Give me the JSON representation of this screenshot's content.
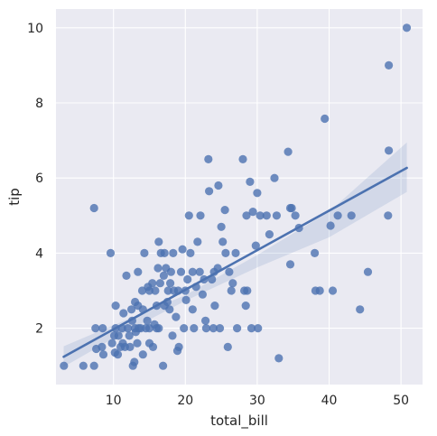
{
  "chart_data": {
    "type": "scatter",
    "title": "",
    "xlabel": "total_bill",
    "ylabel": "tip",
    "xlim": [
      2,
      53
    ],
    "ylim": [
      0.5,
      10.5
    ],
    "xticks": [
      10,
      20,
      30,
      40,
      50
    ],
    "yticks": [
      2,
      4,
      6,
      8,
      10
    ],
    "grid": true,
    "colors": {
      "background": "#eaeaf2",
      "grid": "#ffffff",
      "points": "#4c72b0",
      "line": "#4c72b0",
      "band": "#4c72b0"
    },
    "regression": {
      "x0": 3.07,
      "y0": 1.24,
      "x1": 50.81,
      "y1": 6.27,
      "ci_upper": [
        [
          3.07,
          1.52
        ],
        [
          10,
          2.08
        ],
        [
          20,
          2.88
        ],
        [
          30,
          3.95
        ],
        [
          40,
          5.1
        ],
        [
          50.81,
          6.95
        ]
      ],
      "ci_lower": [
        [
          3.07,
          0.97
        ],
        [
          10,
          1.73
        ],
        [
          20,
          2.73
        ],
        [
          30,
          3.62
        ],
        [
          40,
          4.42
        ],
        [
          50.81,
          5.63
        ]
      ]
    },
    "points": [
      [
        3.1,
        1.0
      ],
      [
        5.8,
        1.0
      ],
      [
        7.3,
        1.0
      ],
      [
        7.3,
        5.2
      ],
      [
        7.5,
        2.0
      ],
      [
        7.6,
        1.45
      ],
      [
        8.4,
        1.5
      ],
      [
        8.5,
        2.0
      ],
      [
        8.6,
        1.3
      ],
      [
        9.6,
        4.0
      ],
      [
        9.8,
        1.6
      ],
      [
        10.1,
        1.8
      ],
      [
        10.2,
        1.35
      ],
      [
        10.3,
        2.0
      ],
      [
        10.3,
        2.6
      ],
      [
        10.6,
        1.3
      ],
      [
        10.7,
        1.8
      ],
      [
        11.0,
        1.5
      ],
      [
        11.2,
        2.0
      ],
      [
        11.3,
        1.6
      ],
      [
        11.4,
        2.4
      ],
      [
        11.6,
        1.5
      ],
      [
        11.8,
        3.4
      ],
      [
        12.0,
        2.0
      ],
      [
        12.2,
        1.8
      ],
      [
        12.3,
        1.5
      ],
      [
        12.5,
        2.5
      ],
      [
        12.6,
        2.2
      ],
      [
        12.7,
        1.0
      ],
      [
        12.9,
        1.1
      ],
      [
        13.0,
        2.0
      ],
      [
        13.0,
        2.7
      ],
      [
        13.1,
        1.9
      ],
      [
        13.3,
        1.6
      ],
      [
        13.4,
        2.6
      ],
      [
        13.4,
        3.5
      ],
      [
        13.5,
        2.0
      ],
      [
        13.8,
        2.0
      ],
      [
        14.0,
        3.0
      ],
      [
        14.1,
        2.5
      ],
      [
        14.1,
        1.3
      ],
      [
        14.3,
        4.0
      ],
      [
        14.5,
        2.0
      ],
      [
        14.7,
        2.2
      ],
      [
        14.8,
        3.1
      ],
      [
        15.0,
        2.0
      ],
      [
        15.0,
        1.6
      ],
      [
        15.0,
        3.0
      ],
      [
        15.4,
        3.2
      ],
      [
        15.5,
        1.5
      ],
      [
        15.7,
        2.1
      ],
      [
        15.8,
        3.0
      ],
      [
        16.0,
        2.0
      ],
      [
        16.0,
        2.6
      ],
      [
        16.2,
        3.6
      ],
      [
        16.3,
        4.3
      ],
      [
        16.3,
        2.0
      ],
      [
        16.5,
        3.2
      ],
      [
        16.6,
        4.0
      ],
      [
        16.9,
        1.0
      ],
      [
        17.0,
        3.4
      ],
      [
        17.1,
        2.6
      ],
      [
        17.1,
        4.0
      ],
      [
        17.3,
        3.6
      ],
      [
        17.5,
        2.7
      ],
      [
        17.6,
        3.0
      ],
      [
        17.8,
        2.5
      ],
      [
        17.9,
        3.2
      ],
      [
        18.0,
        3.5
      ],
      [
        18.2,
        1.8
      ],
      [
        18.3,
        4.0
      ],
      [
        18.4,
        3.0
      ],
      [
        18.7,
        2.3
      ],
      [
        18.9,
        1.4
      ],
      [
        19.0,
        3.0
      ],
      [
        19.1,
        1.5
      ],
      [
        19.4,
        3.5
      ],
      [
        19.6,
        4.1
      ],
      [
        19.8,
        2.0
      ],
      [
        20.0,
        3.0
      ],
      [
        20.1,
        2.75
      ],
      [
        20.3,
        3.3
      ],
      [
        20.5,
        5.0
      ],
      [
        20.7,
        4.0
      ],
      [
        21.0,
        3.5
      ],
      [
        21.0,
        2.5
      ],
      [
        21.2,
        2.0
      ],
      [
        21.5,
        3.1
      ],
      [
        21.7,
        4.3
      ],
      [
        22.0,
        3.5
      ],
      [
        22.1,
        5.0
      ],
      [
        22.4,
        2.9
      ],
      [
        22.6,
        3.3
      ],
      [
        22.8,
        2.2
      ],
      [
        22.9,
        2.0
      ],
      [
        23.2,
        6.5
      ],
      [
        23.3,
        5.65
      ],
      [
        23.7,
        3.3
      ],
      [
        23.9,
        2.0
      ],
      [
        24.0,
        3.5
      ],
      [
        24.1,
        2.6
      ],
      [
        24.5,
        3.6
      ],
      [
        24.6,
        5.8
      ],
      [
        24.8,
        2.0
      ],
      [
        25.0,
        4.7
      ],
      [
        25.2,
        4.3
      ],
      [
        25.5,
        5.15
      ],
      [
        25.6,
        4.0
      ],
      [
        25.9,
        1.5
      ],
      [
        26.1,
        3.5
      ],
      [
        26.4,
        3.0
      ],
      [
        26.6,
        3.2
      ],
      [
        27.0,
        4.0
      ],
      [
        27.2,
        2.0
      ],
      [
        28.0,
        6.5
      ],
      [
        28.2,
        3.0
      ],
      [
        28.4,
        2.6
      ],
      [
        28.5,
        5.0
      ],
      [
        28.6,
        3.0
      ],
      [
        29.0,
        5.9
      ],
      [
        29.2,
        2.0
      ],
      [
        29.4,
        5.1
      ],
      [
        29.8,
        4.2
      ],
      [
        30.0,
        5.6
      ],
      [
        30.1,
        2.0
      ],
      [
        30.4,
        5.0
      ],
      [
        31.3,
        5.0
      ],
      [
        31.7,
        4.5
      ],
      [
        32.4,
        6.0
      ],
      [
        32.7,
        5.0
      ],
      [
        33.0,
        1.2
      ],
      [
        34.3,
        6.7
      ],
      [
        34.6,
        5.2
      ],
      [
        34.6,
        3.7
      ],
      [
        34.8,
        5.2
      ],
      [
        35.3,
        5.0
      ],
      [
        35.8,
        4.67
      ],
      [
        38.0,
        4.0
      ],
      [
        38.1,
        3.0
      ],
      [
        38.7,
        3.0
      ],
      [
        39.4,
        7.58
      ],
      [
        40.2,
        4.73
      ],
      [
        40.5,
        3.0
      ],
      [
        41.2,
        5.0
      ],
      [
        43.1,
        5.0
      ],
      [
        44.3,
        2.5
      ],
      [
        45.4,
        3.5
      ],
      [
        48.2,
        5.0
      ],
      [
        48.3,
        6.73
      ],
      [
        48.3,
        9.0
      ],
      [
        50.8,
        10.0
      ]
    ]
  }
}
